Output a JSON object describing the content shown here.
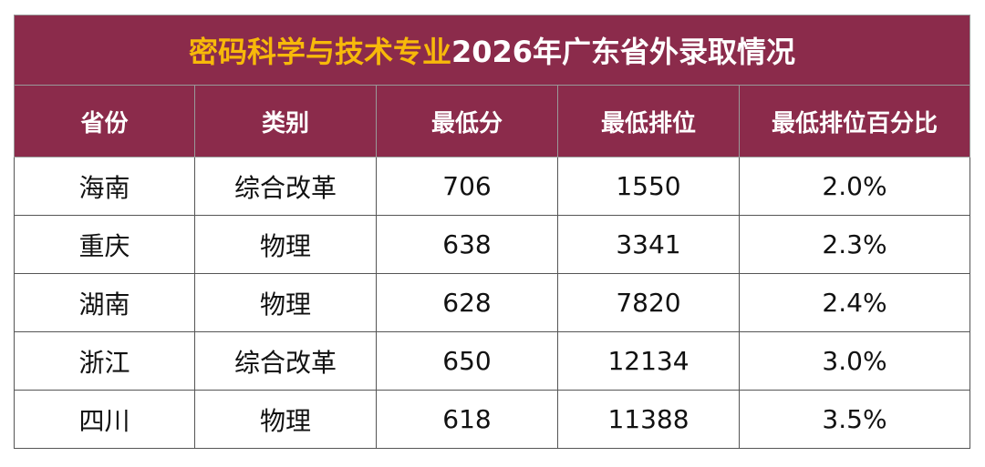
{
  "header": {
    "title_parts": [
      "密码科学与技术专业",
      "2026年广东省外录取情况"
    ]
  },
  "table": {
    "columns": [
      "省份",
      "类别",
      "最低分",
      "最低排位",
      "最低排位百分比"
    ],
    "rows": [
      [
        "海南",
        "综合改革",
        "706",
        "1550",
        "2.0%"
      ],
      [
        "重庆",
        "物理",
        "638",
        "3341",
        "2.3%"
      ],
      [
        "湖南",
        "物理",
        "628",
        "7820",
        "2.4%"
      ],
      [
        "浙江",
        "综合改革",
        "650",
        "12134",
        "3.0%"
      ],
      [
        "四川",
        "物理",
        "618",
        "11388",
        "3.5%"
      ]
    ]
  }
}
